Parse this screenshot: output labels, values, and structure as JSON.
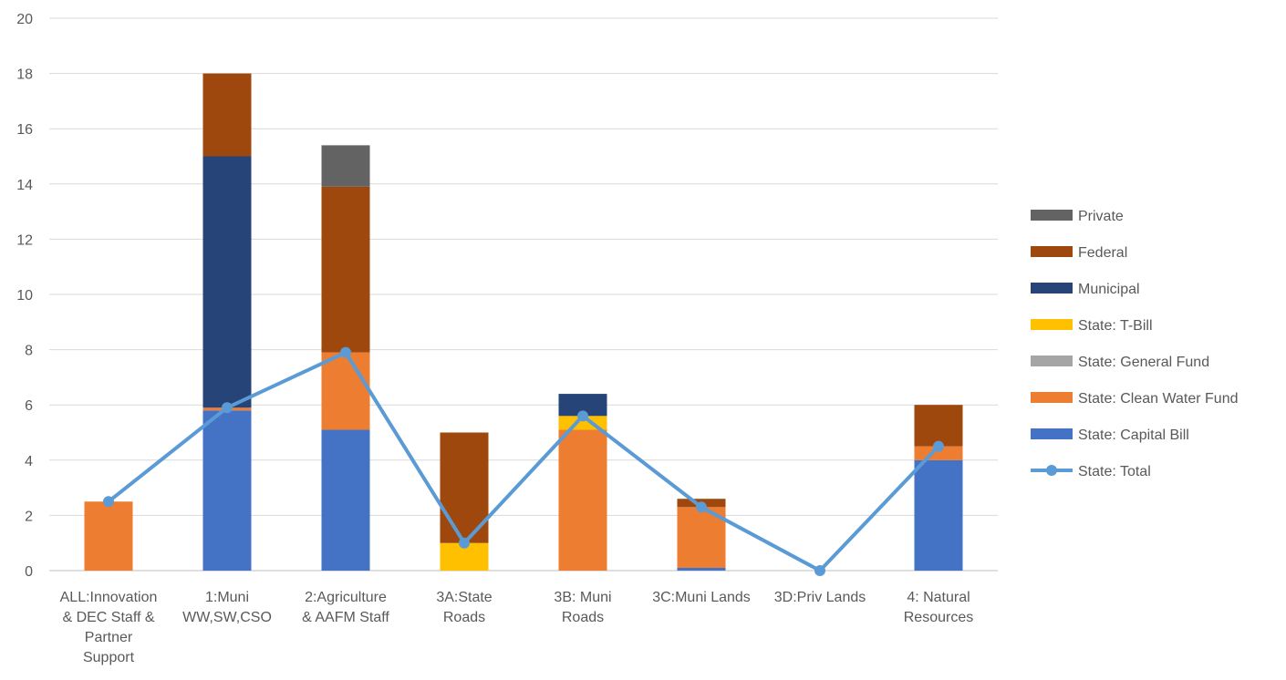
{
  "chart_data": {
    "type": "bar",
    "stacked": true,
    "categories": [
      [
        "ALL:Innovation",
        "& DEC Staff &",
        "Partner",
        "Support"
      ],
      [
        "1:Muni",
        "WW,SW,CSO"
      ],
      [
        "2:Agriculture",
        "& AAFM Staff"
      ],
      [
        "3A:State",
        "Roads"
      ],
      [
        "3B: Muni",
        "Roads"
      ],
      [
        "3C:Muni Lands"
      ],
      [
        "3D:Priv Lands"
      ],
      [
        "4: Natural",
        "Resources"
      ]
    ],
    "ylim": [
      0,
      20
    ],
    "yticks": [
      0,
      2,
      4,
      6,
      8,
      10,
      12,
      14,
      16,
      18,
      20
    ],
    "grid": true,
    "legend_position": "right",
    "series": [
      {
        "name": "State: Capital Bill",
        "color": "#4472C4",
        "values": [
          0,
          5.8,
          5.1,
          0,
          0,
          0.1,
          0,
          4.0
        ]
      },
      {
        "name": "State: Clean Water Fund",
        "color": "#ED7D31",
        "values": [
          2.5,
          0.1,
          2.8,
          0,
          5.1,
          2.2,
          0,
          0.5
        ]
      },
      {
        "name": "State: General Fund",
        "color": "#A5A5A5",
        "values": [
          0,
          0,
          0,
          0,
          0,
          0,
          0,
          0
        ]
      },
      {
        "name": "State: T-Bill",
        "color": "#FFC000",
        "values": [
          0,
          0,
          0,
          1.0,
          0.5,
          0,
          0,
          0
        ]
      },
      {
        "name": "Municipal",
        "color": "#264478",
        "values": [
          0,
          9.1,
          0,
          0,
          0.8,
          0,
          0,
          0
        ]
      },
      {
        "name": "Federal",
        "color": "#9E480E",
        "values": [
          0,
          3.0,
          6.0,
          4.0,
          0,
          0.3,
          0,
          1.5
        ]
      },
      {
        "name": "Private",
        "color": "#636363",
        "values": [
          0,
          0,
          1.5,
          0,
          0,
          0,
          0,
          0
        ]
      }
    ],
    "line_series": {
      "name": "State: Total",
      "color": "#5B9BD5",
      "values": [
        2.5,
        5.9,
        7.9,
        1.0,
        5.6,
        2.3,
        0,
        4.5
      ]
    },
    "legend_order": [
      "Private",
      "Federal",
      "Municipal",
      "State: T-Bill",
      "State: General Fund",
      "State: Clean Water Fund",
      "State: Capital Bill",
      "State: Total"
    ]
  }
}
